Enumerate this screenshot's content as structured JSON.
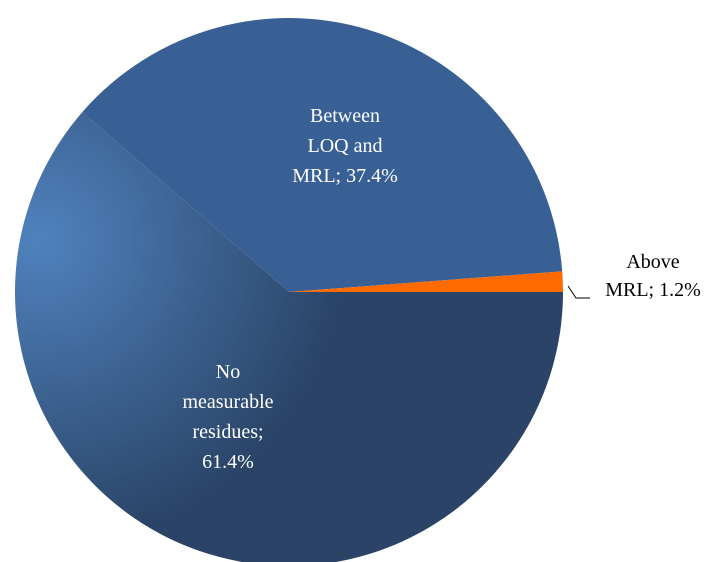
{
  "chart_data": {
    "type": "pie",
    "title": "",
    "slices": [
      {
        "label_lines": [
          "No",
          "measurable",
          "residues;",
          "61.4%"
        ],
        "label": "No measurable residues",
        "value": 61.4,
        "color": "#2a4366",
        "color_highlight": "#4f82bd"
      },
      {
        "label_lines": [
          "Between",
          "LOQ and",
          "MRL; 37.4%"
        ],
        "label": "Between LOQ and MRL",
        "value": 37.4,
        "color": "#386095"
      },
      {
        "label_lines": [
          "Above",
          "MRL; 1.2%"
        ],
        "label": "Above MRL",
        "value": 1.2,
        "color": "#ff6a00"
      }
    ],
    "legend": "none",
    "start_direction": "3 o'clock, going clockwise"
  }
}
